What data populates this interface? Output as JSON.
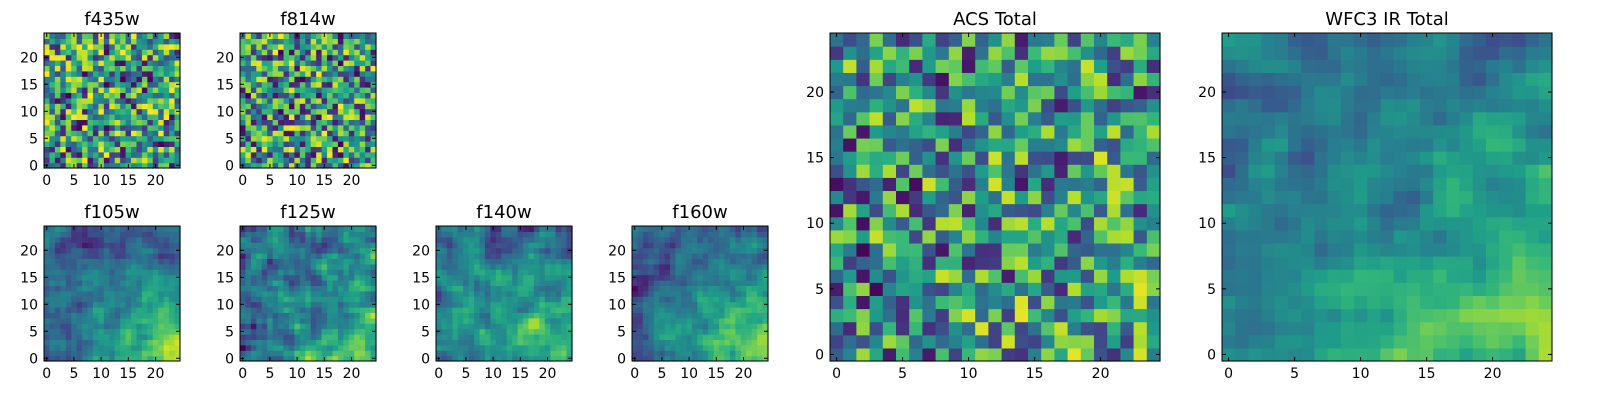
{
  "chart_data": [
    {
      "type": "heatmap",
      "title": "f435w",
      "xticks": [
        "0",
        "5",
        "10",
        "15",
        "20"
      ],
      "yticks": [
        "0",
        "5",
        "10",
        "15",
        "20"
      ],
      "xlim": [
        0,
        25
      ],
      "ylim": [
        0,
        25
      ],
      "grid_size": 25,
      "colormap": "viridis",
      "seed": 11,
      "smooth": 0,
      "trend": 0.0
    },
    {
      "type": "heatmap",
      "title": "f814w",
      "xticks": [
        "0",
        "5",
        "10",
        "15",
        "20"
      ],
      "yticks": [
        "0",
        "5",
        "10",
        "15",
        "20"
      ],
      "xlim": [
        0,
        25
      ],
      "ylim": [
        0,
        25
      ],
      "grid_size": 25,
      "colormap": "viridis",
      "seed": 23,
      "smooth": 0,
      "trend": 0.0
    },
    {
      "type": "heatmap",
      "title": "f105w",
      "xticks": [
        "0",
        "5",
        "10",
        "15",
        "20"
      ],
      "yticks": [
        "0",
        "5",
        "10",
        "15",
        "20"
      ],
      "xlim": [
        0,
        25
      ],
      "ylim": [
        0,
        25
      ],
      "grid_size": 25,
      "colormap": "viridis",
      "seed": 37,
      "smooth": 1,
      "trend": 0.55
    },
    {
      "type": "heatmap",
      "title": "f125w",
      "xticks": [
        "0",
        "5",
        "10",
        "15",
        "20"
      ],
      "yticks": [
        "0",
        "5",
        "10",
        "15",
        "20"
      ],
      "xlim": [
        0,
        25
      ],
      "ylim": [
        0,
        25
      ],
      "grid_size": 25,
      "colormap": "viridis",
      "seed": 41,
      "smooth": 1,
      "trend": 0.3
    },
    {
      "type": "heatmap",
      "title": "f140w",
      "xticks": [
        "0",
        "5",
        "10",
        "15",
        "20"
      ],
      "yticks": [
        "0",
        "5",
        "10",
        "15",
        "20"
      ],
      "xlim": [
        0,
        25
      ],
      "ylim": [
        0,
        25
      ],
      "grid_size": 25,
      "colormap": "viridis",
      "seed": 53,
      "smooth": 1,
      "trend": 0.4
    },
    {
      "type": "heatmap",
      "title": "f160w",
      "xticks": [
        "0",
        "5",
        "10",
        "15",
        "20"
      ],
      "yticks": [
        "0",
        "5",
        "10",
        "15",
        "20"
      ],
      "xlim": [
        0,
        25
      ],
      "ylim": [
        0,
        25
      ],
      "grid_size": 25,
      "colormap": "viridis",
      "seed": 67,
      "smooth": 1,
      "trend": 0.55
    },
    {
      "type": "heatmap",
      "title": "ACS Total",
      "xticks": [
        "0",
        "5",
        "10",
        "15",
        "20"
      ],
      "yticks": [
        "0",
        "5",
        "10",
        "15",
        "20"
      ],
      "xlim": [
        0,
        25
      ],
      "ylim": [
        0,
        25
      ],
      "grid_size": 25,
      "colormap": "viridis",
      "seed": 79,
      "smooth": 0,
      "trend": 0.1
    },
    {
      "type": "heatmap",
      "title": "WFC3 IR Total",
      "xticks": [
        "0",
        "5",
        "10",
        "15",
        "20"
      ],
      "yticks": [
        "0",
        "5",
        "10",
        "15",
        "20"
      ],
      "xlim": [
        0,
        25
      ],
      "ylim": [
        0,
        25
      ],
      "grid_size": 25,
      "colormap": "viridis",
      "seed": 83,
      "smooth": 1,
      "trend": 0.5
    }
  ]
}
